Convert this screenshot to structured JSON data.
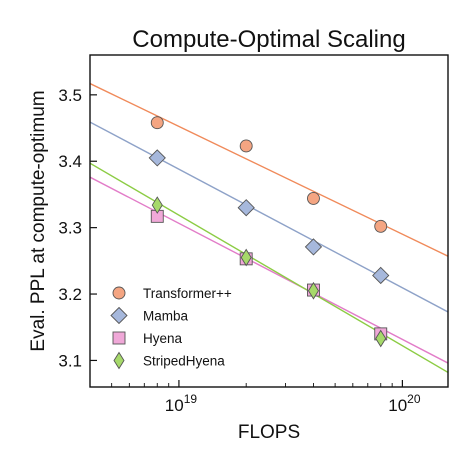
{
  "chart_data": {
    "type": "scatter",
    "title": "Compute-Optimal Scaling",
    "xlabel": "FLOPS",
    "ylabel": "Eval. PPL at compute-optimum",
    "x_scale": "log",
    "xlim": [
      4e+18,
      1.6e+20
    ],
    "ylim": [
      3.06,
      3.56
    ],
    "x_ticks": [
      {
        "value": 1e+19,
        "base": "10",
        "exp": "19"
      },
      {
        "value": 1e+20,
        "base": "10",
        "exp": "20"
      }
    ],
    "y_ticks": [
      {
        "value": 3.1,
        "label": "3.1"
      },
      {
        "value": 3.2,
        "label": "3.2"
      },
      {
        "value": 3.3,
        "label": "3.3"
      },
      {
        "value": 3.4,
        "label": "3.4"
      },
      {
        "value": 3.5,
        "label": "3.5"
      }
    ],
    "grid": false,
    "legend_position": "lower-left",
    "series": [
      {
        "name": "Transformer++",
        "marker": "circle",
        "color": "#f4a582",
        "edge_color": "#555555",
        "line_color": "#f08a5a",
        "x": [
          8e+18,
          2e+19,
          4e+19,
          8e+19
        ],
        "y": [
          3.458,
          3.423,
          3.344,
          3.302
        ],
        "fit_line": [
          [
            4e+18,
            3.517
          ],
          [
            1.6e+20,
            3.257
          ]
        ]
      },
      {
        "name": "Mamba",
        "marker": "diamond",
        "color": "#a6b8dc",
        "edge_color": "#555555",
        "line_color": "#8ea2c8",
        "x": [
          8e+18,
          2e+19,
          4e+19,
          8e+19
        ],
        "y": [
          3.405,
          3.33,
          3.271,
          3.228
        ],
        "fit_line": [
          [
            4e+18,
            3.459
          ],
          [
            1.6e+20,
            3.173
          ]
        ]
      },
      {
        "name": "Hyena",
        "marker": "square",
        "color": "#f0a8d8",
        "edge_color": "#555555",
        "line_color": "#e27cc8",
        "x": [
          8e+18,
          2e+19,
          4e+19,
          8e+19
        ],
        "y": [
          3.317,
          3.253,
          3.206,
          3.14
        ],
        "fit_line": [
          [
            4e+18,
            3.376
          ],
          [
            1.6e+20,
            3.096
          ]
        ]
      },
      {
        "name": "StripedHyena",
        "marker": "thin-diamond",
        "color": "#a6d96a",
        "edge_color": "#555555",
        "line_color": "#8ccc44",
        "x": [
          8e+18,
          2e+19,
          4e+19,
          8e+19
        ],
        "y": [
          3.334,
          3.255,
          3.205,
          3.133
        ],
        "fit_line": [
          [
            4e+18,
            3.397
          ],
          [
            1.6e+20,
            3.082
          ]
        ]
      }
    ]
  }
}
